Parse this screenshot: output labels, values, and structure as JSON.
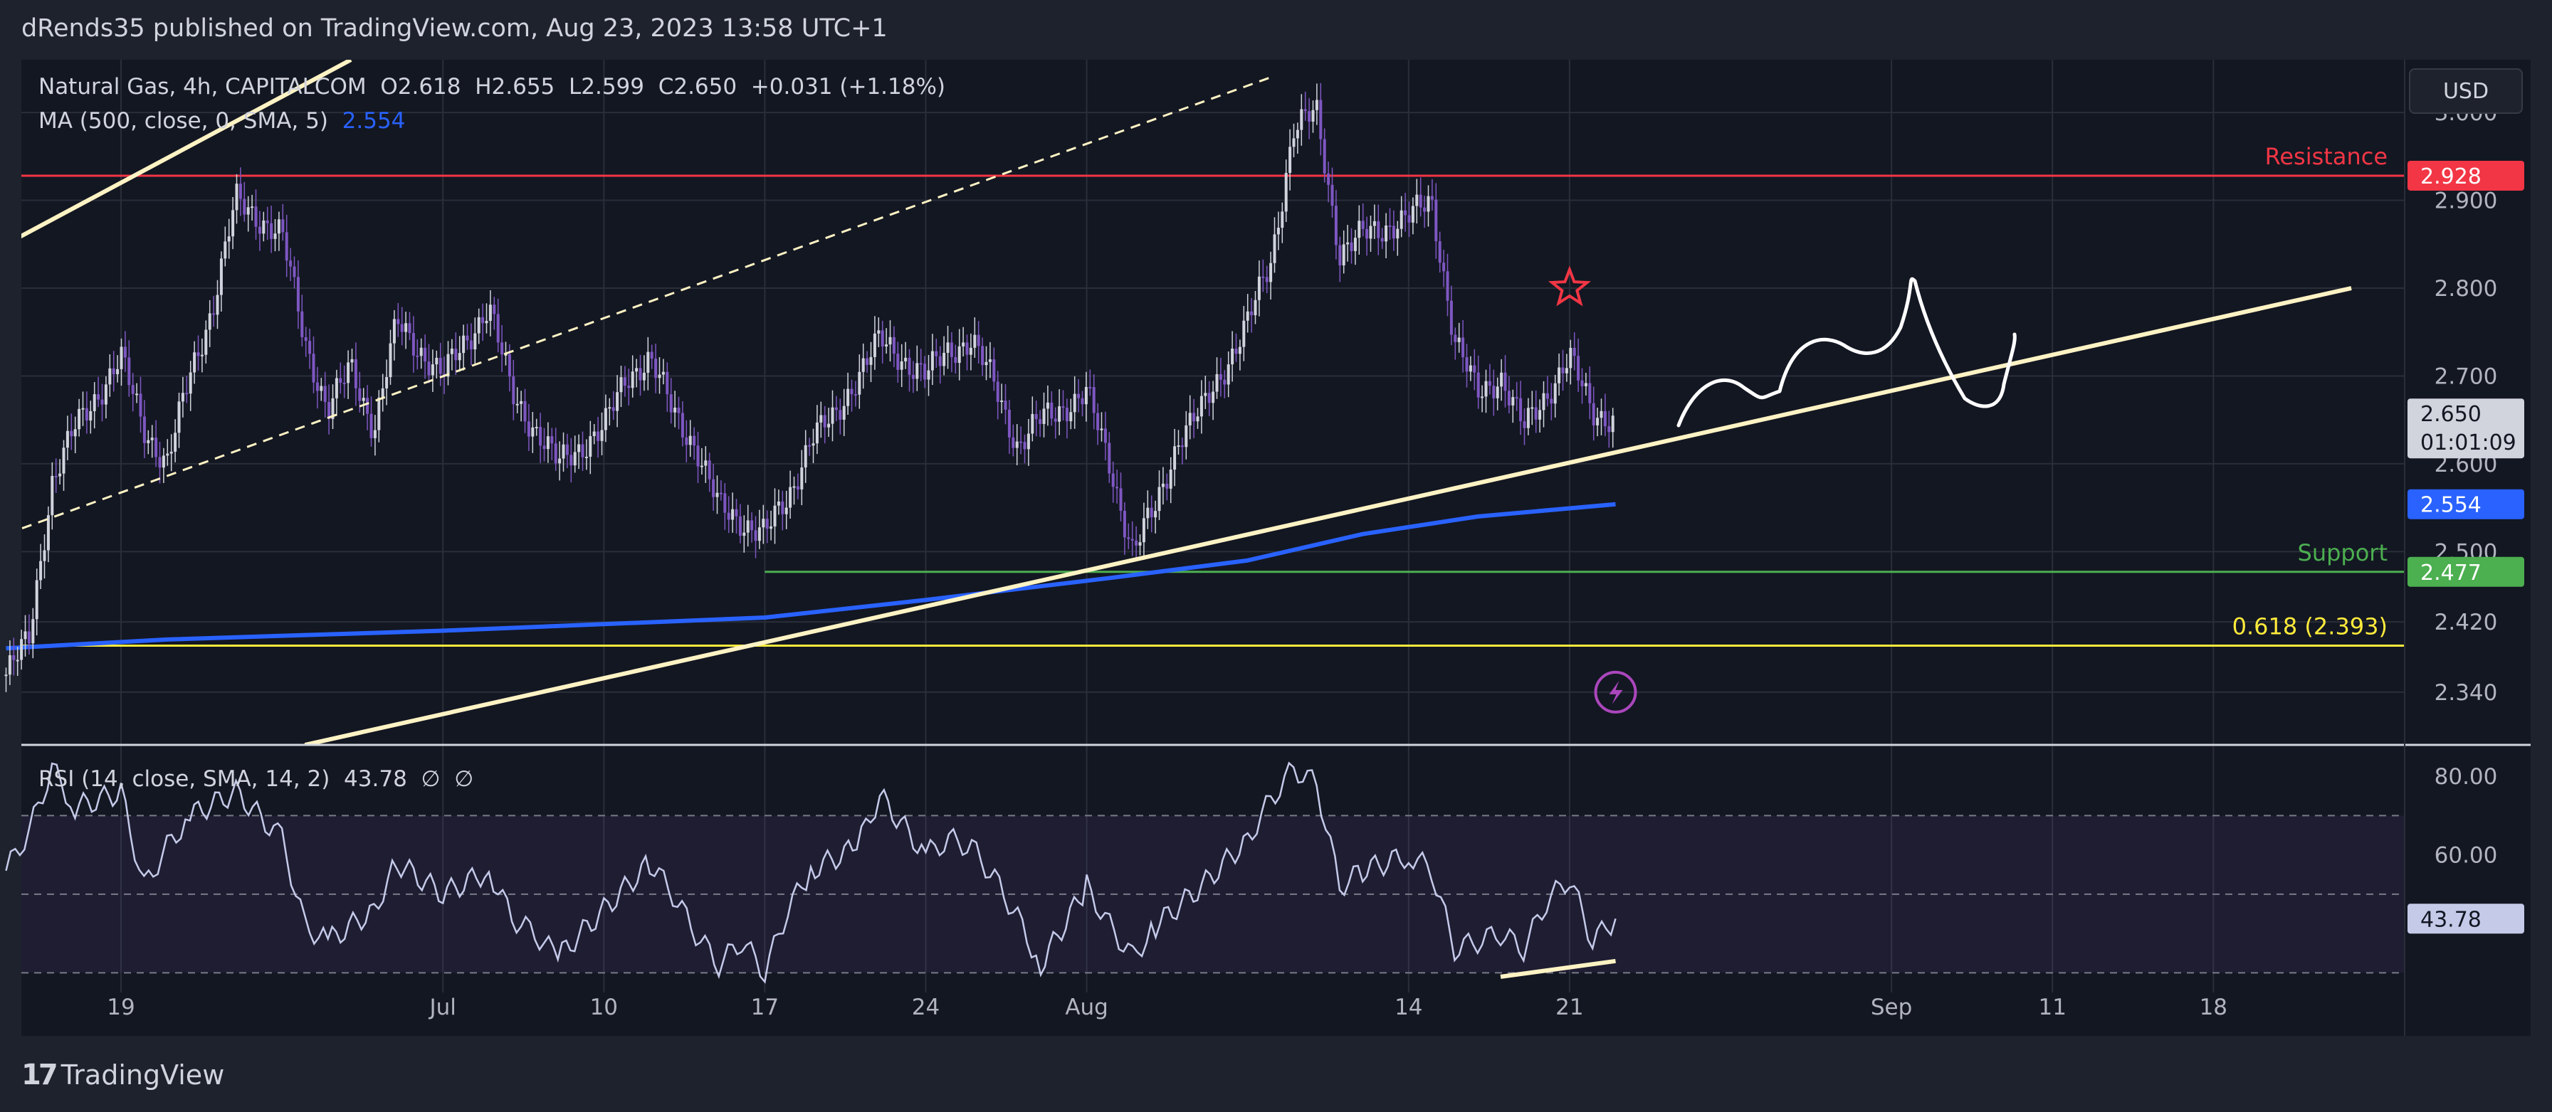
{
  "header": {
    "publisher_line": "dRends35 published on TradingView.com, Aug 23, 2023 13:58 UTC+1"
  },
  "legend": {
    "symbol_line": "Natural Gas, 4h, CAPITALCOM  O2.618  H2.655  L2.599  C2.650  +0.031 (+1.18%)",
    "ma_label": "MA (500, close, 0, SMA, 5)",
    "ma_value": "2.554",
    "rsi_label": "RSI (14, close, SMA, 14, 2)",
    "rsi_value": "43.78",
    "rsi_extra": "∅  ∅"
  },
  "currency_button": "USD",
  "footer": {
    "brand": "TradingView",
    "brand_mark": "17"
  },
  "colors": {
    "background": "#131722",
    "resistance": "#f23645",
    "support": "#4caf50",
    "fib": "#ffeb3b",
    "ma": "#2962ff",
    "trendline": "#fff3c4",
    "candle_up": "#d1d4dc",
    "candle_down": "#7e57c2",
    "rsi_line": "#c5cae9"
  },
  "chart_data": [
    {
      "type": "candlestick",
      "title": "Natural Gas, 4h, CAPITALCOM",
      "ylim": [
        2.28,
        3.06
      ],
      "y_ticks": [
        "3.000",
        "2.900",
        "2.800",
        "2.700",
        "2.600",
        "2.500",
        "2.420",
        "2.340"
      ],
      "x_ticks": [
        "19",
        "Jul",
        "10",
        "17",
        "24",
        "Aug",
        "14",
        "21",
        "Sep",
        "11",
        "18"
      ],
      "x_tick_values": [
        "2023-06-19",
        "2023-07-03",
        "2023-07-10",
        "2023-07-17",
        "2023-07-24",
        "2023-07-31",
        "2023-08-14",
        "2023-08-21",
        "2023-09-04",
        "2023-09-11",
        "2023-09-18"
      ],
      "ohlc_last": {
        "open": 2.618,
        "high": 2.655,
        "low": 2.599,
        "close": 2.65,
        "change": "+0.031 (+1.18%)"
      },
      "price_path": [
        [
          "2023-06-14",
          2.36
        ],
        [
          "2023-06-15",
          2.4
        ],
        [
          "2023-06-16",
          2.58
        ],
        [
          "2023-06-17",
          2.64
        ],
        [
          "2023-06-19",
          2.72
        ],
        [
          "2023-06-20",
          2.64
        ],
        [
          "2023-06-21",
          2.6
        ],
        [
          "2023-06-22",
          2.7
        ],
        [
          "2023-06-23",
          2.78
        ],
        [
          "2023-06-24",
          2.9
        ],
        [
          "2023-06-26",
          2.86
        ],
        [
          "2023-06-27",
          2.74
        ],
        [
          "2023-06-28",
          2.66
        ],
        [
          "2023-06-29",
          2.71
        ],
        [
          "2023-06-30",
          2.64
        ],
        [
          "2023-07-01",
          2.76
        ],
        [
          "2023-07-03",
          2.7
        ],
        [
          "2023-07-04",
          2.74
        ],
        [
          "2023-07-05",
          2.78
        ],
        [
          "2023-07-06",
          2.68
        ],
        [
          "2023-07-07",
          2.64
        ],
        [
          "2023-07-08",
          2.6
        ],
        [
          "2023-07-10",
          2.64
        ],
        [
          "2023-07-11",
          2.7
        ],
        [
          "2023-07-12",
          2.72
        ],
        [
          "2023-07-13",
          2.66
        ],
        [
          "2023-07-14",
          2.62
        ],
        [
          "2023-07-15",
          2.55
        ],
        [
          "2023-07-17",
          2.52
        ],
        [
          "2023-07-18",
          2.56
        ],
        [
          "2023-07-19",
          2.63
        ],
        [
          "2023-07-20",
          2.65
        ],
        [
          "2023-07-21",
          2.7
        ],
        [
          "2023-07-22",
          2.74
        ],
        [
          "2023-07-24",
          2.7
        ],
        [
          "2023-07-25",
          2.73
        ],
        [
          "2023-07-26",
          2.74
        ],
        [
          "2023-07-27",
          2.69
        ],
        [
          "2023-07-28",
          2.62
        ],
        [
          "2023-07-29",
          2.65
        ],
        [
          "2023-07-31",
          2.68
        ],
        [
          "2023-08-01",
          2.6
        ],
        [
          "2023-08-02",
          2.5
        ],
        [
          "2023-08-03",
          2.55
        ],
        [
          "2023-08-04",
          2.63
        ],
        [
          "2023-08-05",
          2.66
        ],
        [
          "2023-08-07",
          2.76
        ],
        [
          "2023-08-08",
          2.83
        ],
        [
          "2023-08-09",
          2.98
        ],
        [
          "2023-08-10",
          3.0
        ],
        [
          "2023-08-11",
          2.84
        ],
        [
          "2023-08-12",
          2.86
        ],
        [
          "2023-08-14",
          2.88
        ],
        [
          "2023-08-15",
          2.9
        ],
        [
          "2023-08-16",
          2.74
        ],
        [
          "2023-08-17",
          2.68
        ],
        [
          "2023-08-18",
          2.7
        ],
        [
          "2023-08-19",
          2.64
        ],
        [
          "2023-08-21",
          2.72
        ],
        [
          "2023-08-22",
          2.66
        ],
        [
          "2023-08-23",
          2.65
        ]
      ],
      "moving_average": {
        "name": "MA (500, close, 0, SMA, 5)",
        "last": 2.554,
        "points": [
          [
            "2023-06-14",
            2.39
          ],
          [
            "2023-06-21",
            2.4
          ],
          [
            "2023-07-03",
            2.41
          ],
          [
            "2023-07-17",
            2.425
          ],
          [
            "2023-07-24",
            2.445
          ],
          [
            "2023-08-01",
            2.47
          ],
          [
            "2023-08-07",
            2.49
          ],
          [
            "2023-08-12",
            2.52
          ],
          [
            "2023-08-17",
            2.54
          ],
          [
            "2023-08-23",
            2.554
          ]
        ]
      },
      "horizontal_levels": [
        {
          "label": "Resistance",
          "value": 2.928,
          "color": "#f23645"
        },
        {
          "label": "Support",
          "value": 2.477,
          "color": "#4caf50",
          "from": "2023-07-17"
        },
        {
          "label": "0.618 (2.393)",
          "value": 2.393,
          "color": "#ffeb3b"
        }
      ],
      "price_badges": [
        {
          "value": "2.928",
          "bg": "#f23645",
          "fg": "#ffffff",
          "y": 2.928
        },
        {
          "value": "2.650",
          "sub": "01:01:09",
          "bg": "#d1d4dc",
          "fg": "#131722",
          "y": 2.65
        },
        {
          "value": "2.554",
          "bg": "#2962ff",
          "fg": "#ffffff",
          "y": 2.554
        },
        {
          "value": "2.477",
          "bg": "#4caf50",
          "fg": "#ffffff",
          "y": 2.477
        }
      ],
      "trendlines": [
        {
          "style": "solid",
          "from": [
            "2023-06-14",
            2.85
          ],
          "to": [
            "2023-06-29",
            3.06
          ]
        },
        {
          "style": "dashed",
          "from": [
            "2023-06-14",
            2.52
          ],
          "to": [
            "2023-08-08",
            3.04
          ]
        },
        {
          "style": "solid",
          "from": [
            "2023-06-27",
            2.28
          ],
          "to": [
            "2023-09-24",
            2.8
          ]
        }
      ],
      "annotations": [
        {
          "type": "star",
          "at": [
            "2023-08-21",
            2.8
          ],
          "color": "#f23645"
        },
        {
          "type": "lightning-marker",
          "at": [
            "2023-08-23",
            2.34
          ],
          "color": "#ab47bc"
        }
      ]
    },
    {
      "type": "line",
      "title": "RSI (14, close, SMA, 14, 2)",
      "ylim": [
        25,
        88
      ],
      "y_ticks": [
        "80.00",
        "60.00"
      ],
      "bands": [
        70,
        50,
        30
      ],
      "last_value": 43.78,
      "points": [
        [
          "2023-06-14",
          56
        ],
        [
          "2023-06-15",
          66
        ],
        [
          "2023-06-16",
          82
        ],
        [
          "2023-06-17",
          72
        ],
        [
          "2023-06-19",
          76
        ],
        [
          "2023-06-20",
          52
        ],
        [
          "2023-06-21",
          62
        ],
        [
          "2023-06-22",
          70
        ],
        [
          "2023-06-24",
          76
        ],
        [
          "2023-06-26",
          64
        ],
        [
          "2023-06-27",
          42
        ],
        [
          "2023-06-28",
          38
        ],
        [
          "2023-06-30",
          46
        ],
        [
          "2023-07-01",
          58
        ],
        [
          "2023-07-03",
          50
        ],
        [
          "2023-07-05",
          56
        ],
        [
          "2023-07-06",
          44
        ],
        [
          "2023-07-07",
          40
        ],
        [
          "2023-07-08",
          34
        ],
        [
          "2023-07-10",
          46
        ],
        [
          "2023-07-12",
          58
        ],
        [
          "2023-07-13",
          50
        ],
        [
          "2023-07-14",
          40
        ],
        [
          "2023-07-15",
          32
        ],
        [
          "2023-07-16",
          38
        ],
        [
          "2023-07-17",
          30
        ],
        [
          "2023-07-18",
          46
        ],
        [
          "2023-07-19",
          56
        ],
        [
          "2023-07-21",
          62
        ],
        [
          "2023-07-22",
          75
        ],
        [
          "2023-07-24",
          60
        ],
        [
          "2023-07-25",
          64
        ],
        [
          "2023-07-26",
          62
        ],
        [
          "2023-07-27",
          54
        ],
        [
          "2023-07-28",
          44
        ],
        [
          "2023-07-29",
          32
        ],
        [
          "2023-07-31",
          52
        ],
        [
          "2023-08-01",
          42
        ],
        [
          "2023-08-02",
          34
        ],
        [
          "2023-08-03",
          42
        ],
        [
          "2023-08-05",
          52
        ],
        [
          "2023-08-07",
          64
        ],
        [
          "2023-08-08",
          74
        ],
        [
          "2023-08-09",
          82
        ],
        [
          "2023-08-10",
          78
        ],
        [
          "2023-08-11",
          52
        ],
        [
          "2023-08-12",
          56
        ],
        [
          "2023-08-14",
          60
        ],
        [
          "2023-08-15",
          56
        ],
        [
          "2023-08-16",
          36
        ],
        [
          "2023-08-17",
          38
        ],
        [
          "2023-08-18",
          40
        ],
        [
          "2023-08-19",
          36
        ],
        [
          "2023-08-20",
          48
        ],
        [
          "2023-08-21",
          54
        ],
        [
          "2023-08-22",
          38
        ],
        [
          "2023-08-23",
          43.78
        ]
      ],
      "trendline": {
        "from": [
          "2023-08-18",
          29
        ],
        "to": [
          "2023-08-23",
          33
        ]
      }
    }
  ]
}
